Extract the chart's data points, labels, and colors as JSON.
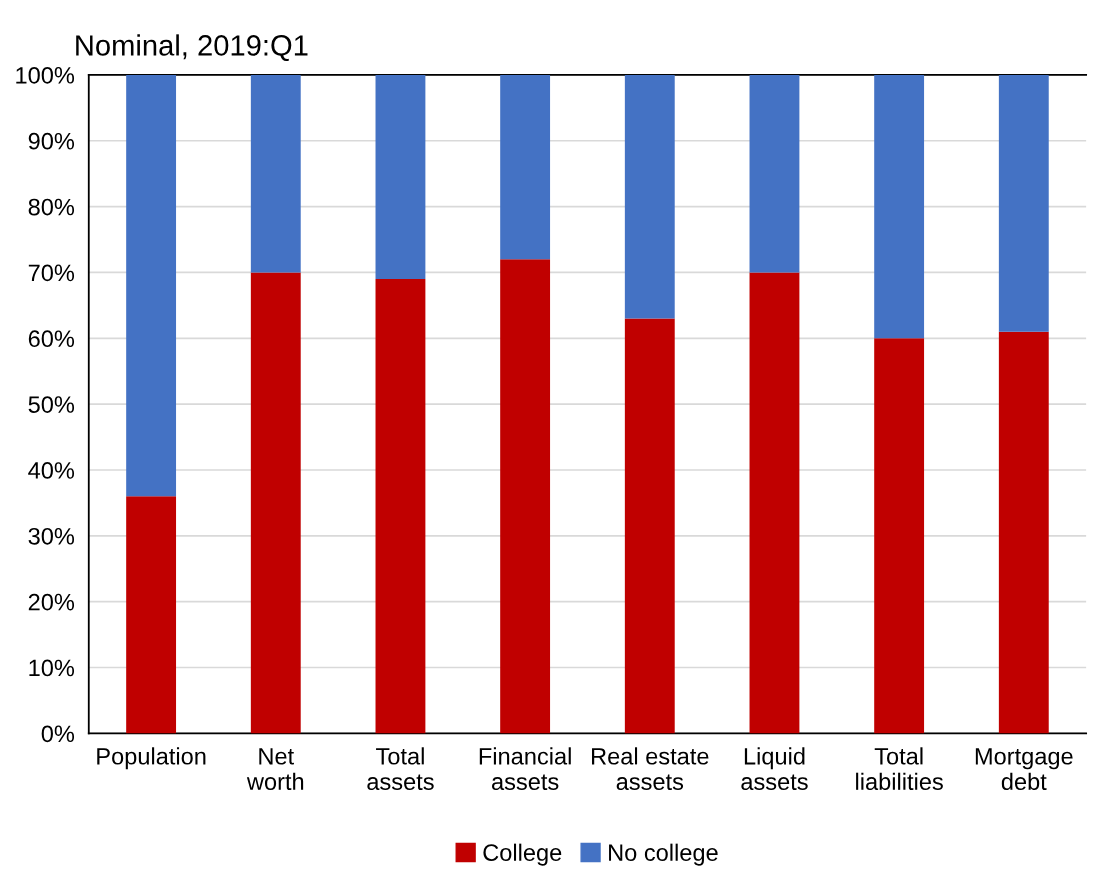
{
  "chart_data": {
    "type": "bar",
    "title": "Nominal, 2019:Q1",
    "categories": [
      "Population",
      "Net\nworth",
      "Total\nassets",
      "Financial\nassets",
      "Real estate\nassets",
      "Liquid\nassets",
      "Total\nliabilities",
      "Mortgage\ndebt"
    ],
    "stacked": true,
    "series": [
      {
        "name": "College",
        "color": "#c00000",
        "values": [
          36,
          70,
          69,
          72,
          63,
          70,
          60,
          61
        ]
      },
      {
        "name": "No college",
        "color": "#4472c4",
        "values": [
          64,
          30,
          31,
          28,
          37,
          30,
          40,
          39
        ]
      }
    ],
    "ylim": [
      0,
      100
    ],
    "yticks": [
      {
        "value": 0,
        "label": "0%"
      },
      {
        "value": 10,
        "label": "10%"
      },
      {
        "value": 20,
        "label": "20%"
      },
      {
        "value": 30,
        "label": "30%"
      },
      {
        "value": 40,
        "label": "40%"
      },
      {
        "value": 50,
        "label": "50%"
      },
      {
        "value": 60,
        "label": "60%"
      },
      {
        "value": 70,
        "label": "70%"
      },
      {
        "value": 80,
        "label": "80%"
      },
      {
        "value": 90,
        "label": "90%"
      },
      {
        "value": 100,
        "label": "100%"
      }
    ],
    "grid": "y",
    "legend": "bottom"
  }
}
